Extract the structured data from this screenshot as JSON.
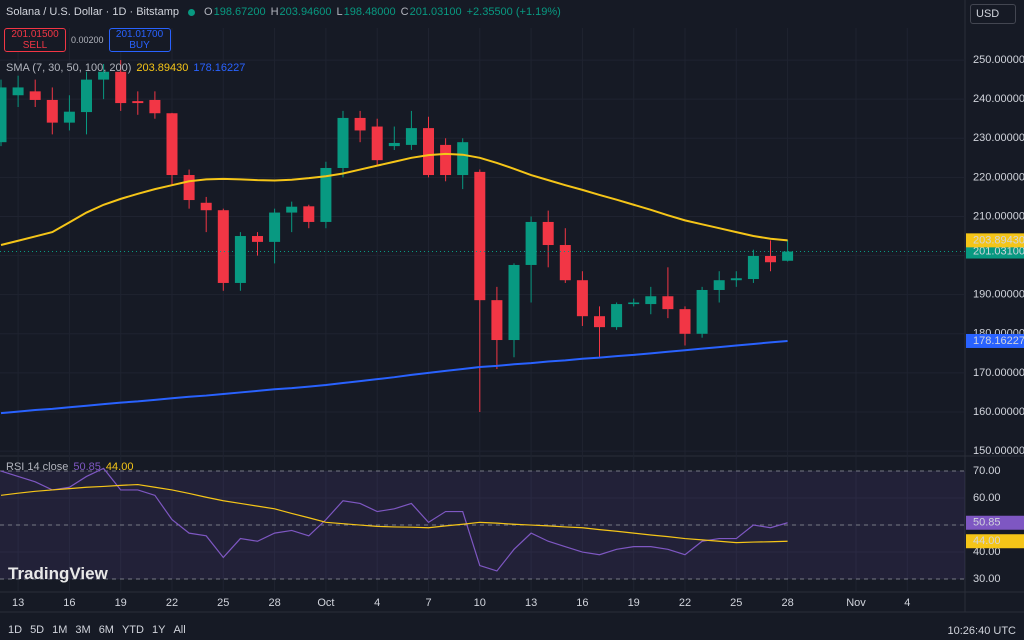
{
  "header": {
    "symbol": "Solana / U.S. Dollar · 1D · Bitstamp",
    "ohlc": [
      {
        "key": "O",
        "value": "198.67200"
      },
      {
        "key": "H",
        "value": "203.94600"
      },
      {
        "key": "L",
        "value": "198.48000"
      },
      {
        "key": "C",
        "value": "201.03100"
      }
    ],
    "change": "+2.35500 (+1.19%)"
  },
  "trade": {
    "sell_price": "201.01500",
    "sell": "SELL",
    "spread": "0.00200",
    "buy_price": "201.01700",
    "buy": "BUY"
  },
  "currency": "USD",
  "indicator_legend": {
    "label": "SMA (7, 30, 50, 100, 200)",
    "values": [
      "203.89430",
      "178.16227"
    ]
  },
  "rsi_legend": {
    "label": "RSI 14 close",
    "values": [
      "50.85",
      "44.00"
    ]
  },
  "watermark": "TradingView",
  "toolbar": {
    "ranges": [
      "1D",
      "5D",
      "1M",
      "3M",
      "6M",
      "YTD",
      "1Y",
      "All"
    ],
    "time": "10:26:40 UTC"
  },
  "chart_data": [
    {
      "type": "candlestick",
      "categories": [
        null,
        "13",
        null,
        null,
        "16",
        null,
        null,
        "19",
        null,
        null,
        "22",
        null,
        null,
        "25",
        null,
        null,
        "28",
        null,
        null,
        "Oct",
        null,
        null,
        "4",
        null,
        null,
        "7",
        null,
        null,
        "10",
        null,
        null,
        "13",
        null,
        null,
        "16",
        null,
        null,
        "19",
        null,
        null,
        "22",
        null,
        null,
        "25",
        null,
        null,
        "28",
        null,
        null,
        null,
        "Nov",
        null,
        null,
        "4"
      ],
      "open": [
        229,
        241,
        242,
        239.8,
        234,
        236.7,
        245,
        247,
        239.5,
        239.8,
        236.4,
        220.6,
        213.5,
        211.6,
        193,
        205,
        203.5,
        211,
        212.6,
        208.6,
        222.4,
        235.2,
        233,
        228,
        228.3,
        232.6,
        228.3,
        220.6,
        221.4,
        188.6,
        178.4,
        197.6,
        208.6,
        202.7,
        193.7,
        184.5,
        181.7,
        187.6,
        187.6,
        189.6,
        186.3,
        180,
        191.2,
        193.7,
        194,
        199.9,
        198.672,
        null,
        null,
        null,
        null,
        null,
        null,
        null
      ],
      "high": [
        245,
        246,
        245,
        243,
        241,
        247,
        249,
        250,
        242,
        242,
        236.5,
        222,
        215,
        212,
        206,
        206,
        212,
        213.8,
        213,
        224,
        237,
        237,
        235,
        233,
        237,
        235.5,
        230,
        230,
        222,
        192,
        198,
        210,
        211.5,
        207,
        196,
        187,
        188,
        189,
        192,
        197,
        187,
        192,
        196,
        196,
        201.5,
        203.9,
        203.946,
        null,
        null,
        null,
        null,
        null,
        null,
        null
      ],
      "low": [
        228,
        238,
        238,
        231,
        232,
        231,
        240,
        237,
        236,
        235,
        218,
        212,
        206,
        191,
        191,
        200,
        198,
        206,
        207,
        207,
        220,
        229,
        223,
        227,
        227,
        220,
        219,
        217,
        160,
        171,
        174,
        188,
        197,
        193,
        182,
        174,
        181,
        187,
        185,
        184,
        177,
        179,
        188,
        192,
        193,
        196,
        198.48,
        null,
        null,
        null,
        null,
        null,
        null,
        null
      ],
      "close": [
        243,
        243,
        239.8,
        234,
        236.8,
        245,
        247,
        239,
        239,
        236.4,
        220.6,
        214.2,
        211.6,
        193,
        205,
        203.5,
        211,
        212.5,
        208.6,
        222.4,
        235.2,
        232,
        224.4,
        228.8,
        232.6,
        220.6,
        220.6,
        229,
        188.6,
        178.4,
        197.6,
        208.6,
        202.7,
        193.7,
        184.5,
        181.7,
        187.6,
        188,
        189.6,
        186.3,
        180,
        191.2,
        193.7,
        194.2,
        199.9,
        198.3,
        201.031,
        null,
        null,
        null,
        null,
        null,
        null,
        null
      ],
      "up_color": "#089981",
      "down_color": "#f23645",
      "series": [
        {
          "color": "#f5c518",
          "values": [
            202.7,
            203.8,
            204.9,
            206,
            208.5,
            211,
            213,
            214.5,
            215.8,
            217,
            218,
            219,
            219.5,
            219.6,
            219.5,
            219.3,
            219.2,
            219.4,
            219.8,
            220.3,
            221,
            222,
            223,
            224,
            225,
            225.7,
            226,
            225.8,
            225,
            223.7,
            222.2,
            220.6,
            219.3,
            218,
            216.8,
            215.5,
            214.3,
            213,
            211.7,
            210.3,
            209,
            208,
            207,
            206,
            205,
            204.3,
            203.8943,
            null,
            null,
            null,
            null,
            null,
            null,
            null
          ]
        },
        {
          "color": "#2962ff",
          "values": [
            159.7,
            160.1,
            160.5,
            160.8,
            161.2,
            161.6,
            162,
            162.4,
            162.7,
            163.1,
            163.5,
            163.9,
            164.2,
            164.6,
            165,
            165.4,
            165.8,
            166.1,
            166.5,
            166.9,
            167.4,
            167.9,
            168.4,
            168.9,
            169.5,
            170,
            170.5,
            171,
            171.5,
            171.8,
            172.2,
            172.5,
            172.9,
            173.2,
            173.6,
            173.9,
            174.3,
            174.6,
            175,
            175.4,
            175.8,
            176.2,
            176.6,
            177,
            177.4,
            177.8,
            178.16227,
            null,
            null,
            null,
            null,
            null,
            null,
            null
          ]
        }
      ],
      "ylim": [
        149,
        258.2
      ],
      "yticks": [
        {
          "value": 150,
          "label": "150.00000"
        },
        {
          "value": 160,
          "label": "160.00000"
        },
        {
          "value": 170,
          "label": "170.00000"
        },
        {
          "value": 180,
          "label": "180.00000"
        },
        {
          "value": 190,
          "label": "190.00000"
        },
        {
          "value": 200,
          "label": "200.00000"
        },
        {
          "value": 210,
          "label": "210.00000"
        },
        {
          "value": 220,
          "label": "220.00000"
        },
        {
          "value": 230,
          "label": "230.00000"
        },
        {
          "value": 240,
          "label": "240.00000"
        },
        {
          "value": 250,
          "label": "250.00000"
        }
      ],
      "grid": true
    },
    {
      "type": "line",
      "series": [
        {
          "color": "#7e57c2",
          "values": [
            70,
            68,
            66,
            63,
            64,
            68,
            71,
            63,
            63,
            61,
            52,
            47,
            46,
            38,
            45,
            44,
            47,
            48,
            46,
            52,
            59,
            58,
            55,
            56,
            58,
            51,
            55,
            55,
            35,
            33,
            41,
            47,
            44,
            42,
            40,
            39,
            41,
            42,
            42,
            41,
            39,
            44,
            45,
            45,
            50,
            49,
            50.85
          ]
        },
        {
          "color": "#f5c518",
          "values": [
            61,
            61.8,
            62.5,
            63,
            63.5,
            64,
            64.3,
            64.7,
            65,
            64,
            63,
            61.7,
            60.3,
            59,
            58,
            57,
            56,
            54.3,
            52.7,
            51,
            50.5,
            50,
            49.5,
            49.3,
            49.2,
            49,
            49.7,
            50.3,
            51,
            50.7,
            50.3,
            50,
            49.7,
            49.3,
            49,
            48.3,
            47.7,
            47,
            46.3,
            45.7,
            45,
            44.5,
            44,
            43.5,
            43.7,
            43.8,
            44
          ]
        }
      ],
      "ylim": [
        25.2,
        75.2
      ],
      "yticks": [
        {
          "value": 30,
          "label": "30.00"
        },
        {
          "value": 40,
          "label": "40.00"
        },
        {
          "value": 50,
          "label": "50.00"
        },
        {
          "value": 60,
          "label": "60.00"
        },
        {
          "value": 70,
          "label": "70.00"
        }
      ],
      "grid": true
    }
  ]
}
